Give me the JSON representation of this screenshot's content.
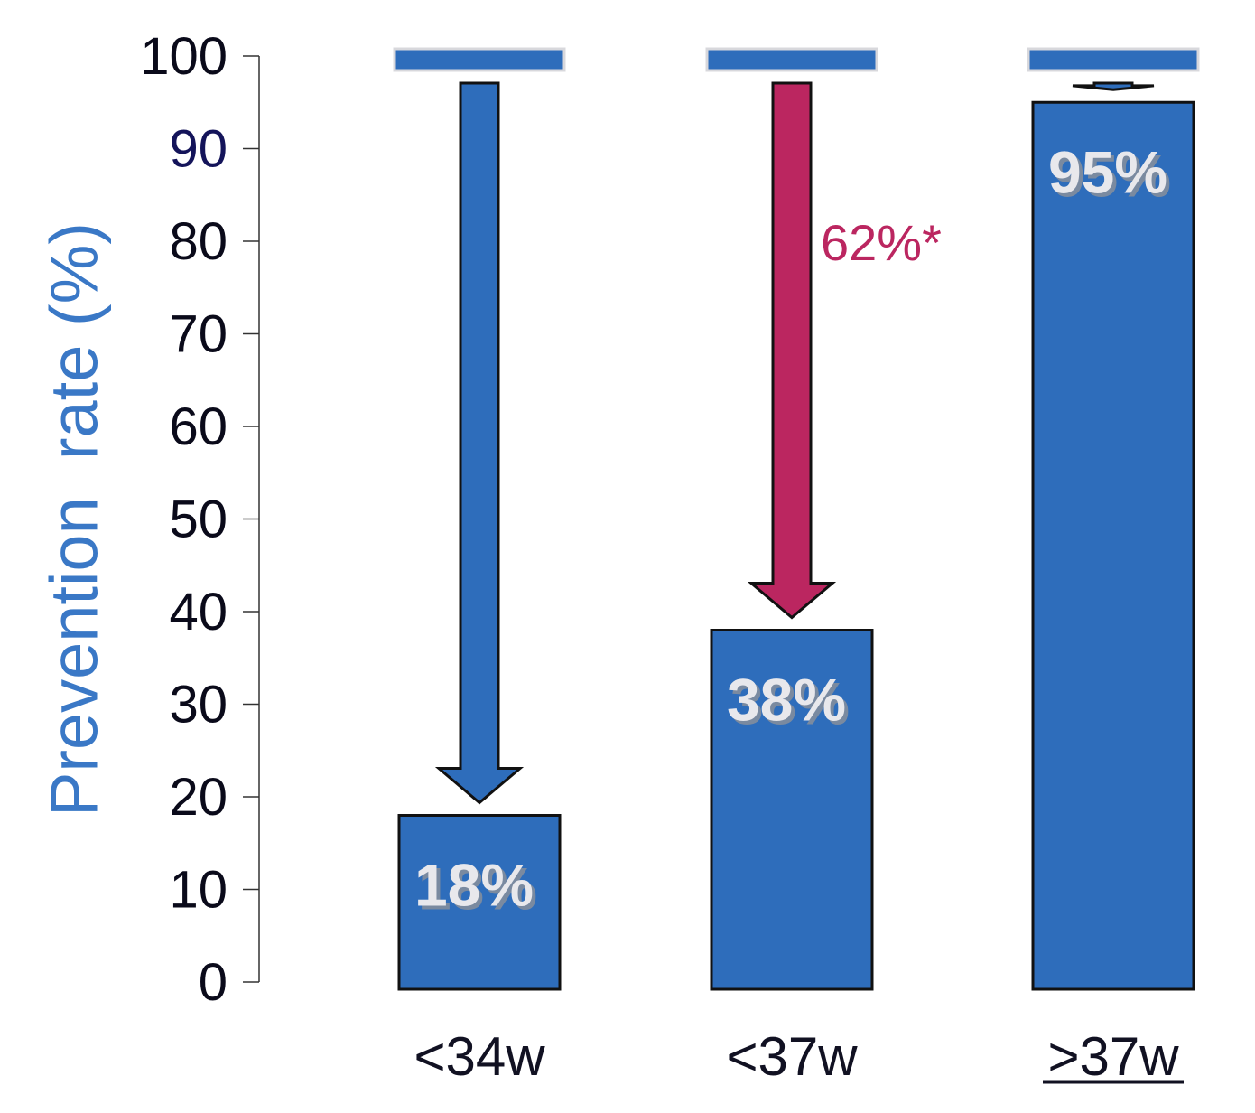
{
  "chart_data": {
    "type": "bar",
    "ylabel": "Prevention  rate (%)",
    "ylim": [
      0,
      100
    ],
    "yticks": [
      {
        "label": "0",
        "value": 0
      },
      {
        "label": "10",
        "value": 10
      },
      {
        "label": "20",
        "value": 20
      },
      {
        "label": "30",
        "value": 30
      },
      {
        "label": "40",
        "value": 40
      },
      {
        "label": "50",
        "value": 50
      },
      {
        "label": "60",
        "value": 60
      },
      {
        "label": "70",
        "value": 70
      },
      {
        "label": "80",
        "value": 80
      },
      {
        "label": "90",
        "value": 90
      },
      {
        "label": "100",
        "value": 100
      }
    ],
    "categories": [
      {
        "label": "<34w",
        "underline": false
      },
      {
        "label": "<37w",
        "underline": false
      },
      {
        "label": ">37w",
        "underline": true
      }
    ],
    "values": [
      18,
      38,
      95
    ],
    "value_labels": [
      "18%",
      "38%",
      "95%"
    ],
    "reference_value": 100,
    "arrow_colors": [
      "#2e6dbb",
      "#bb2660",
      "#2e6dbb"
    ],
    "annotations": [
      {
        "category_index": 1,
        "text": "62%*",
        "color": "#bb2660"
      }
    ],
    "colors": {
      "bar": "#2e6dbb",
      "ylabel": "#3a78c6",
      "tick": "#0a0a1a",
      "tick_90": "#14145a"
    },
    "grid": false,
    "legend": "none"
  }
}
